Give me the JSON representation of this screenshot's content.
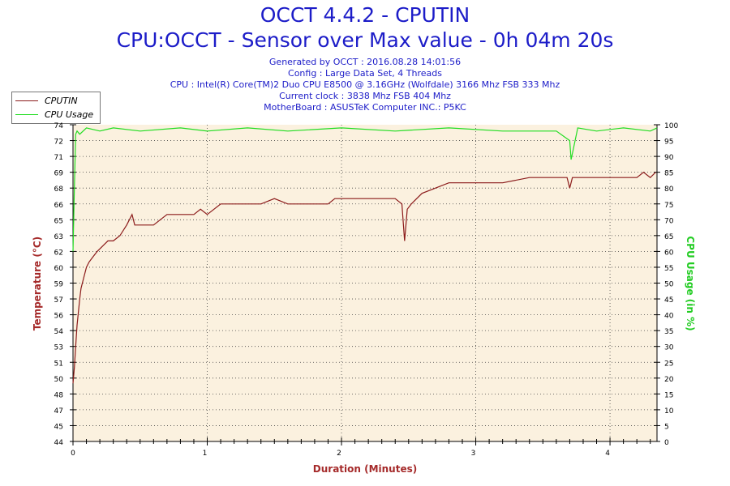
{
  "header": {
    "title": "OCCT 4.4.2 - CPUTIN",
    "subtitle": "CPU:OCCT - Sensor over Max value - 0h 04m 20s",
    "info": [
      "Generated by OCCT : 2016.08.28 14:01:56",
      "Config : Large Data Set, 4 Threads",
      "CPU : Intel(R) Core(TM)2 Duo CPU E8500 @ 3.16GHz (Wolfdale) 3166 Mhz FSB 333 Mhz",
      "Current clock : 3838 Mhz FSB 404 Mhz",
      "MotherBoard : ASUSTeK Computer INC.: P5KC"
    ]
  },
  "colors": {
    "temperature": "#8b1a1a",
    "usage": "#22dd22",
    "title": "#1c1cc8",
    "plot_bg": "#fbf1df",
    "axis_label_left": "#a52a2a",
    "axis_label_right": "#22cc22"
  },
  "chart_data": {
    "type": "line",
    "title": "OCCT 4.4.2 - CPUTIN",
    "xlabel": "Duration (Minutes)",
    "ylabel": "Temperature (°C)",
    "y2label": "CPU Usage (in %)",
    "xlim": [
      0,
      4.35
    ],
    "ylim": [
      44,
      74
    ],
    "y2lim": [
      0,
      100
    ],
    "x_ticks": [
      "0",
      "1",
      "2",
      "3",
      "4"
    ],
    "y_ticks": [
      "44",
      "45",
      "47",
      "48",
      "50",
      "51",
      "53",
      "54",
      "56",
      "57",
      "59",
      "60",
      "62",
      "63",
      "65",
      "66",
      "68",
      "69",
      "71",
      "72",
      "74"
    ],
    "y2_ticks": [
      "0",
      "5",
      "10",
      "15",
      "20",
      "25",
      "30",
      "35",
      "40",
      "45",
      "50",
      "55",
      "60",
      "65",
      "70",
      "75",
      "80",
      "85",
      "90",
      "95",
      "100"
    ],
    "grid": true,
    "legend_position": "top-left",
    "series": [
      {
        "name": "CPUTIN",
        "axis": "left",
        "x": [
          0.0,
          0.01,
          0.02,
          0.03,
          0.05,
          0.06,
          0.08,
          0.1,
          0.12,
          0.15,
          0.18,
          0.22,
          0.26,
          0.3,
          0.35,
          0.4,
          0.44,
          0.46,
          0.5,
          0.6,
          0.65,
          0.7,
          0.8,
          0.85,
          0.9,
          0.95,
          1.0,
          1.05,
          1.1,
          1.2,
          1.3,
          1.4,
          1.5,
          1.6,
          1.7,
          1.8,
          1.9,
          1.95,
          2.0,
          2.1,
          2.2,
          2.3,
          2.4,
          2.45,
          2.47,
          2.49,
          2.52,
          2.6,
          2.7,
          2.8,
          2.9,
          3.0,
          3.2,
          3.4,
          3.6,
          3.68,
          3.7,
          3.72,
          3.8,
          3.9,
          4.0,
          4.1,
          4.15,
          4.2,
          4.25,
          4.3,
          4.34
        ],
        "values": [
          49.5,
          51,
          53,
          55,
          57.5,
          58.5,
          59.5,
          60.5,
          61,
          61.5,
          62,
          62.5,
          63,
          63,
          63.5,
          64.5,
          65.5,
          64.5,
          64.5,
          64.5,
          65,
          65.5,
          65.5,
          65.5,
          65.5,
          66,
          65.5,
          66,
          66.5,
          66.5,
          66.5,
          66.5,
          67,
          66.5,
          66.5,
          66.5,
          66.5,
          67,
          67,
          67,
          67,
          67,
          67,
          66.5,
          63,
          66,
          66.5,
          67.5,
          68,
          68.5,
          68.5,
          68.5,
          68.5,
          69,
          69,
          69,
          68,
          69,
          69,
          69,
          69,
          69,
          69,
          69,
          69.5,
          69,
          69.5
        ]
      },
      {
        "name": "CPU Usage",
        "axis": "right",
        "x": [
          0.0,
          0.01,
          0.02,
          0.03,
          0.05,
          0.1,
          0.2,
          0.3,
          0.5,
          0.8,
          1.0,
          1.3,
          1.6,
          2.0,
          2.4,
          2.8,
          3.2,
          3.6,
          3.7,
          3.71,
          3.73,
          3.76,
          3.9,
          4.1,
          4.3,
          4.35
        ],
        "values": [
          60,
          80,
          97,
          98,
          97,
          99,
          98,
          99,
          98,
          99,
          98,
          99,
          98,
          99,
          98,
          99,
          98,
          98,
          95,
          89,
          93,
          99,
          98,
          99,
          98,
          99
        ]
      }
    ]
  }
}
